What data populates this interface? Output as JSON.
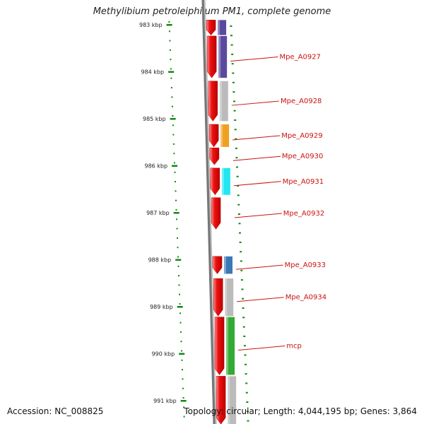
{
  "title": "Methylibium petroleiphilum PM1, complete genome",
  "footer": {
    "accession": "Accession: NC_008825",
    "topology": "Topology: circular; Length: 4,044,195 bp; Genes: 3,864"
  },
  "scale": {
    "unit": "kbp",
    "ticks": [
      {
        "kbp": 983,
        "label": "983 kbp"
      },
      {
        "kbp": 984,
        "label": "984 kbp"
      },
      {
        "kbp": 985,
        "label": "985 kbp"
      },
      {
        "kbp": 986,
        "label": "986 kbp"
      },
      {
        "kbp": 987,
        "label": "987 kbp"
      },
      {
        "kbp": 988,
        "label": "988 kbp"
      },
      {
        "kbp": 989,
        "label": "989 kbp"
      },
      {
        "kbp": 990,
        "label": "990 kbp"
      },
      {
        "kbp": 991,
        "label": "991 kbp"
      }
    ]
  },
  "colors": {
    "gene": "#ee1111",
    "backbone": "#777777",
    "tick": "#118811",
    "label": "#cc1111",
    "leader": "#cc1111"
  },
  "genes": [
    {
      "id": "g0",
      "start_kbp": 982.9,
      "end_kbp": 983.22,
      "label": "",
      "cog_color": "#5a4a9e"
    },
    {
      "id": "g1",
      "start_kbp": 983.24,
      "end_kbp": 984.13,
      "label": "Mpe_A0927",
      "cog_color": "#5a4a9e"
    },
    {
      "id": "g2",
      "start_kbp": 984.2,
      "end_kbp": 985.05,
      "label": "Mpe_A0928",
      "cog_color": "#bbbbbb"
    },
    {
      "id": "g3",
      "start_kbp": 985.12,
      "end_kbp": 985.6,
      "label": "Mpe_A0929",
      "cog_color": "#f0a020"
    },
    {
      "id": "g4",
      "start_kbp": 985.62,
      "end_kbp": 985.98,
      "label": "Mpe_A0930",
      "cog_color": ""
    },
    {
      "id": "g5",
      "start_kbp": 986.05,
      "end_kbp": 986.62,
      "label": "Mpe_A0931",
      "cog_color": "#22e6f0"
    },
    {
      "id": "g6",
      "start_kbp": 986.68,
      "end_kbp": 987.35,
      "label": "Mpe_A0932",
      "cog_color": ""
    },
    {
      "id": "g7",
      "start_kbp": 987.93,
      "end_kbp": 988.3,
      "label": "Mpe_A0933",
      "cog_color": "#3a78b8"
    },
    {
      "id": "g8",
      "start_kbp": 988.4,
      "end_kbp": 989.2,
      "label": "Mpe_A0934",
      "cog_color": "#bbbbbb"
    },
    {
      "id": "g9",
      "start_kbp": 989.22,
      "end_kbp": 990.45,
      "label": "mcp",
      "cog_color": "#33aa33"
    },
    {
      "id": "g10",
      "start_kbp": 990.48,
      "end_kbp": 991.5,
      "label": "",
      "cog_color": "#bbbbbb"
    }
  ]
}
